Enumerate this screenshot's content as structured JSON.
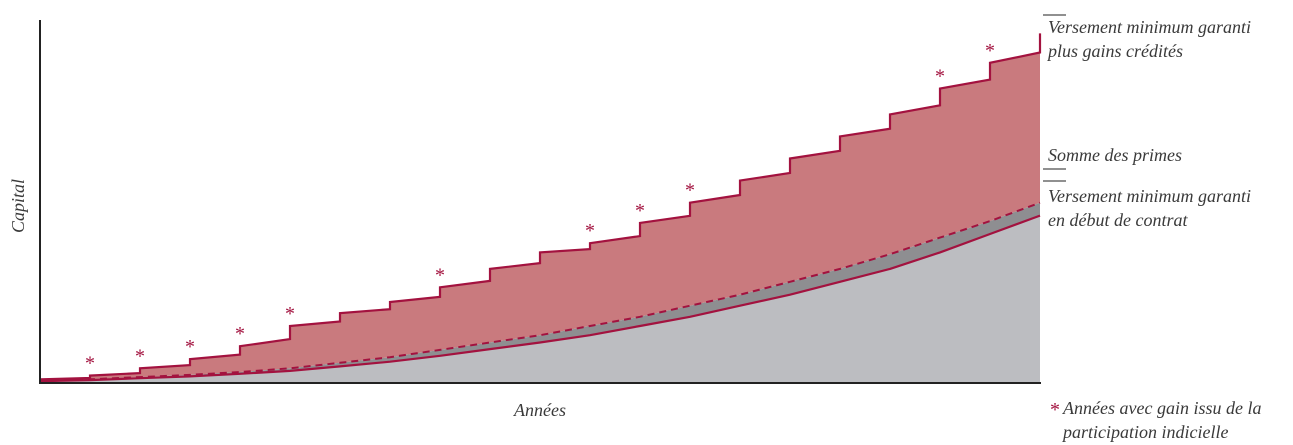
{
  "chart_data": {
    "type": "area",
    "xlabel": "Années",
    "ylabel": "Capital",
    "x_ticks": false,
    "y_ticks": false,
    "x": [
      0,
      1,
      2,
      3,
      4,
      5,
      6,
      7,
      8,
      9,
      10,
      11,
      12,
      13,
      14,
      15,
      16,
      17,
      18,
      19,
      20
    ],
    "series": [
      {
        "name": "Versement minimum garanti plus gains crédités",
        "values": [
          0.01,
          0.02,
          0.04,
          0.065,
          0.1,
          0.155,
          0.19,
          0.22,
          0.26,
          0.31,
          0.355,
          0.38,
          0.435,
          0.49,
          0.55,
          0.61,
          0.67,
          0.73,
          0.8,
          0.87,
          0.95
        ],
        "color": "#a3123f",
        "fill": "#c97a7e",
        "line_style": "solid"
      },
      {
        "name": "Somme des primes",
        "values": [
          0.005,
          0.01,
          0.016,
          0.022,
          0.03,
          0.04,
          0.055,
          0.07,
          0.09,
          0.11,
          0.13,
          0.155,
          0.18,
          0.21,
          0.24,
          0.275,
          0.31,
          0.35,
          0.395,
          0.44,
          0.49
        ],
        "color": "#a3123f",
        "fill": "#8e8e91",
        "line_style": "dashed"
      },
      {
        "name": "Versement minimum garanti en début de contrat",
        "values": [
          0.005,
          0.008,
          0.013,
          0.018,
          0.025,
          0.033,
          0.045,
          0.058,
          0.074,
          0.092,
          0.11,
          0.13,
          0.155,
          0.18,
          0.21,
          0.24,
          0.275,
          0.31,
          0.355,
          0.405,
          0.455
        ],
        "color": "#a3123f",
        "fill": "#bcbdc1",
        "line_style": "solid"
      }
    ],
    "gain_years": [
      1,
      2,
      3,
      4,
      5,
      8,
      11,
      12,
      13,
      18,
      19
    ],
    "gain_marker": "*",
    "legend_note": [
      "Années avec gain issu de la",
      "participation indicielle"
    ],
    "ylim": [
      0,
      1
    ],
    "xlim": [
      0,
      20
    ]
  },
  "colors": {
    "accent": "#a3123f",
    "gain_area": "#c97a7e",
    "premium_band": "#8e8e91",
    "guaranteed_area": "#bcbdc1",
    "text": "#3a3a3a",
    "axis": "#222222"
  }
}
